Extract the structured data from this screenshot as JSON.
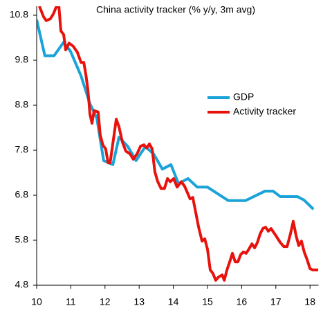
{
  "chart_data": {
    "type": "line",
    "title": "China activity tracker (% y/y, 3m avg)",
    "xlim": [
      10,
      18.25
    ],
    "xticks": [
      10,
      11,
      12,
      13,
      14,
      15,
      16,
      17,
      18
    ],
    "ylim": [
      4.8,
      11.0
    ],
    "yticks": [
      4.8,
      5.8,
      6.8,
      7.8,
      8.8,
      9.8,
      10.8
    ],
    "grid": false,
    "legend": "right",
    "series": [
      {
        "name": "GDP",
        "color": "#1aa3d9",
        "x": [
          10.0,
          10.24,
          10.51,
          10.79,
          10.99,
          11.3,
          11.56,
          11.76,
          11.96,
          12.23,
          12.41,
          12.67,
          12.91,
          13.18,
          13.42,
          13.68,
          13.93,
          14.15,
          14.43,
          14.7,
          15.0,
          15.61,
          16.11,
          16.68,
          16.92,
          17.13,
          17.63,
          17.83,
          18.1
        ],
        "values": [
          10.7,
          9.9,
          9.9,
          10.2,
          10.0,
          9.45,
          8.83,
          8.52,
          7.57,
          7.48,
          8.09,
          7.88,
          7.57,
          7.88,
          7.72,
          7.38,
          7.48,
          7.06,
          7.17,
          6.98,
          6.98,
          6.68,
          6.68,
          6.89,
          6.89,
          6.77,
          6.77,
          6.69,
          6.49
        ]
      },
      {
        "name": "Activity tracker",
        "color": "#e8120c",
        "x": [
          10.08,
          10.2,
          10.28,
          10.4,
          10.49,
          10.57,
          10.65,
          10.71,
          10.79,
          10.85,
          10.95,
          11.07,
          11.19,
          11.3,
          11.38,
          11.44,
          11.5,
          11.56,
          11.62,
          11.68,
          11.8,
          11.86,
          11.94,
          12.02,
          12.09,
          12.15,
          12.25,
          12.33,
          12.41,
          12.51,
          12.61,
          12.73,
          12.83,
          12.94,
          13.04,
          13.14,
          13.22,
          13.3,
          13.38,
          13.46,
          13.54,
          13.64,
          13.74,
          13.83,
          13.91,
          14.01,
          14.11,
          14.23,
          14.33,
          14.41,
          14.49,
          14.57,
          14.66,
          14.74,
          14.84,
          14.92,
          15.0,
          15.08,
          15.16,
          15.24,
          15.32,
          15.43,
          15.49,
          15.57,
          15.65,
          15.73,
          15.81,
          15.89,
          15.97,
          16.05,
          16.13,
          16.21,
          16.3,
          16.38,
          16.46,
          16.54,
          16.62,
          16.7,
          16.78,
          16.86,
          16.94,
          17.02,
          17.13,
          17.23,
          17.33,
          17.43,
          17.51,
          17.59,
          17.67,
          17.75,
          17.83,
          17.91,
          18.0,
          18.08,
          18.24
        ],
        "values": [
          11.0,
          10.77,
          10.68,
          10.72,
          10.83,
          10.98,
          11.0,
          10.45,
          10.37,
          10.03,
          10.18,
          10.11,
          9.98,
          9.75,
          9.75,
          9.48,
          9.14,
          8.6,
          8.4,
          8.68,
          8.65,
          8.14,
          7.91,
          7.83,
          7.52,
          7.52,
          8.06,
          8.49,
          8.32,
          7.98,
          7.78,
          7.72,
          7.6,
          7.72,
          7.89,
          7.92,
          7.85,
          7.94,
          7.83,
          7.32,
          7.11,
          6.95,
          6.95,
          7.17,
          7.1,
          7.17,
          6.98,
          7.1,
          7.0,
          6.86,
          6.72,
          6.75,
          6.4,
          6.09,
          5.78,
          5.83,
          5.6,
          5.14,
          5.06,
          4.91,
          4.98,
          5.03,
          4.91,
          5.14,
          5.32,
          5.51,
          5.32,
          5.32,
          5.48,
          5.54,
          5.51,
          5.6,
          5.72,
          5.63,
          5.75,
          5.94,
          6.06,
          6.09,
          6.0,
          6.06,
          5.97,
          5.88,
          5.75,
          5.66,
          5.66,
          5.95,
          6.22,
          5.91,
          5.68,
          5.78,
          5.54,
          5.38,
          5.17,
          5.14,
          5.14
        ]
      }
    ]
  }
}
